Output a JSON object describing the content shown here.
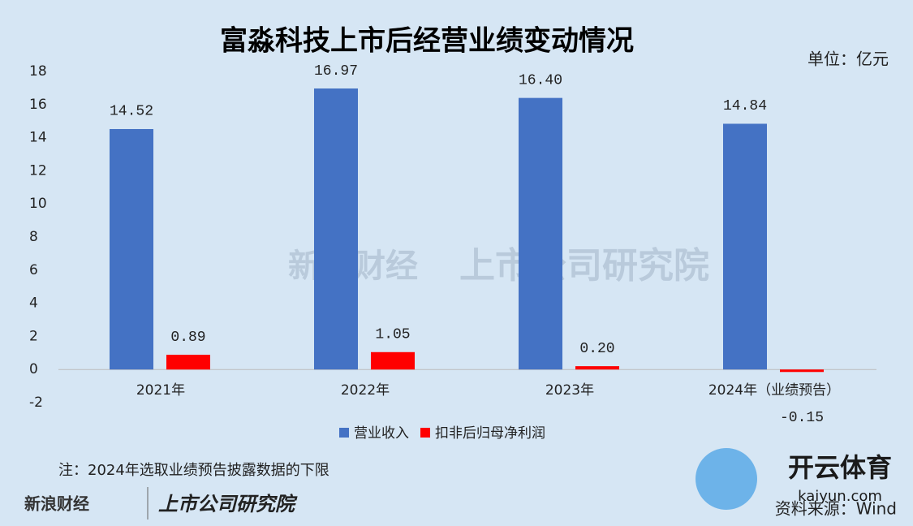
{
  "chart_data": {
    "type": "bar",
    "title": "富淼科技上市后经营业绩变动情况",
    "unit": "单位：亿元",
    "categories": [
      "2021年",
      "2022年",
      "2023年",
      "2024年（业绩预告）"
    ],
    "series": [
      {
        "name": "营业收入",
        "color": "#4472c4",
        "values": [
          14.52,
          16.97,
          16.4,
          14.84
        ],
        "value_labels": [
          "14.52",
          "16.97",
          "16.40",
          "14.84"
        ]
      },
      {
        "name": "扣非后归母净利润",
        "color": "#ff0000",
        "values": [
          0.89,
          1.05,
          0.2,
          -0.15
        ],
        "value_labels": [
          "0.89",
          "1.05",
          "0.20",
          "-0.15"
        ]
      }
    ],
    "ylim": [
      -2,
      18
    ],
    "yticks": [
      -2,
      0,
      2,
      4,
      6,
      8,
      10,
      12,
      14,
      16,
      18
    ],
    "grid": false,
    "note": "注：2024年选取业绩预告披露数据的下限",
    "source": "资料来源：Wind",
    "logo": [
      "新浪财经",
      "上市公司研究院"
    ],
    "watermark": [
      "新浪财经",
      "上市公司研究院",
      "开云体育",
      "kaiyun.com"
    ]
  }
}
